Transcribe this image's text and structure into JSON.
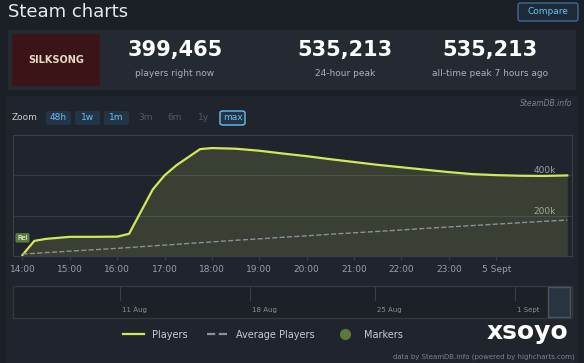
{
  "header": {
    "title": "Steam charts",
    "button": "Compare",
    "image_text": "SILKSONG"
  },
  "stats": [
    {
      "value": "399,465",
      "label": "players right now"
    },
    {
      "value": "535,213",
      "label": "24-hour peak"
    },
    {
      "value": "535,213",
      "label": "all-time peak 7 hours ago"
    }
  ],
  "source_badge": "SteamDB.info",
  "zoom": {
    "label": "Zoom",
    "buttons": [
      "48h",
      "1w",
      "1m",
      "3m",
      "6m",
      "1y",
      "max"
    ],
    "enabled": [
      true,
      true,
      true,
      false,
      false,
      false,
      true
    ],
    "selected": "max"
  },
  "chart_data": {
    "type": "line",
    "x": [
      14.0,
      14.25,
      14.5,
      15.0,
      15.5,
      16.0,
      16.25,
      16.5,
      16.75,
      17.0,
      17.25,
      17.5,
      17.75,
      18.0,
      18.5,
      19.0,
      19.5,
      20.0,
      20.5,
      21.0,
      21.5,
      22.0,
      22.5,
      23.0,
      23.5,
      24.0,
      24.5,
      25.0,
      25.5
    ],
    "series": [
      {
        "name": "Players",
        "color": "#d2e85c",
        "line_style": "solid",
        "values": [
          5000,
          75000,
          85000,
          95000,
          95000,
          96000,
          110000,
          220000,
          330000,
          400000,
          450000,
          490000,
          530000,
          535213,
          532000,
          522000,
          508000,
          495000,
          480000,
          466000,
          452000,
          440000,
          428000,
          416000,
          406000,
          401000,
          398000,
          397000,
          399465
        ]
      },
      {
        "name": "Average Players",
        "color": "#8b9099",
        "line_style": "dashed",
        "values": [
          10000,
          13000,
          17000,
          24000,
          31000,
          38000,
          42000,
          46000,
          50000,
          54000,
          58000,
          62000,
          66000,
          70000,
          78000,
          85000,
          93000,
          100000,
          108000,
          115000,
          122000,
          129000,
          137000,
          144000,
          151000,
          158000,
          165000,
          172000,
          178000
        ]
      }
    ],
    "xlim": [
      13.8,
      25.6
    ],
    "xticks": [
      {
        "value": 14,
        "label": "14:00"
      },
      {
        "value": 15,
        "label": "15:00"
      },
      {
        "value": 16,
        "label": "16:00"
      },
      {
        "value": 17,
        "label": "17:00"
      },
      {
        "value": 18,
        "label": "18:00"
      },
      {
        "value": 19,
        "label": "19:00"
      },
      {
        "value": 20,
        "label": "20:00"
      },
      {
        "value": 21,
        "label": "21:00"
      },
      {
        "value": 22,
        "label": "22:00"
      },
      {
        "value": 23,
        "label": "23:00"
      },
      {
        "value": 24,
        "label": "5 Sept"
      }
    ],
    "ylim": [
      0,
      600000
    ],
    "yticks": [
      {
        "value": 200000,
        "label": "200k"
      },
      {
        "value": 400000,
        "label": "400k"
      }
    ],
    "grid": true,
    "legend": "lower center",
    "markers": {
      "name": "Markers",
      "color": "#5b7a3c",
      "points": [
        {
          "x": 14,
          "label": "Rel"
        }
      ]
    }
  },
  "navigator": {
    "labels": [
      "11 Aug",
      "18 Aug",
      "25 Aug",
      "1 Sept"
    ]
  },
  "footer": "data by SteamDB.info (powered by highcharts.com)",
  "watermark": "xsoyo"
}
